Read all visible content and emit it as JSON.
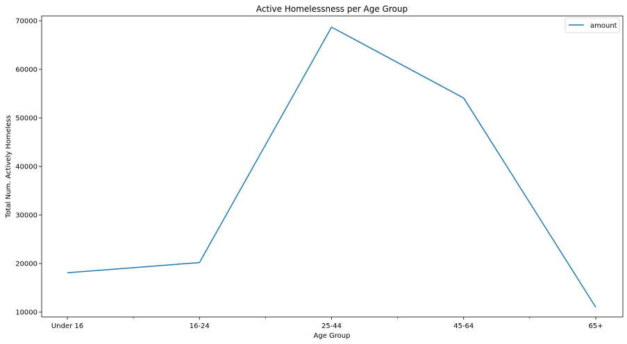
{
  "chart_data": {
    "type": "line",
    "title": "Active Homelessness per Age Group",
    "xlabel": "Age Group",
    "ylabel": "Total Num. Actively Homeless",
    "categories": [
      "Under 16",
      "16-24",
      "25-44",
      "45-64",
      "65+"
    ],
    "series": [
      {
        "name": "amount",
        "values": [
          18100,
          20200,
          68700,
          54100,
          11000
        ],
        "color": "#1f77b4"
      }
    ],
    "ylim": [
      9000,
      71000
    ],
    "yticks": [
      10000,
      20000,
      30000,
      40000,
      50000,
      60000,
      70000
    ],
    "grid": false,
    "legend": "top-right"
  }
}
